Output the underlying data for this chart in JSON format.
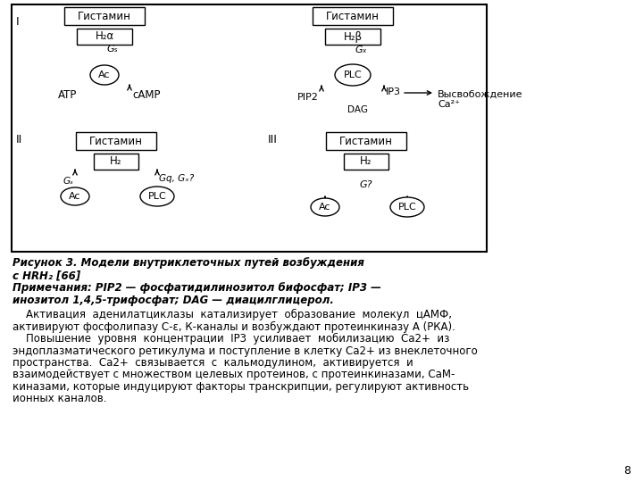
{
  "bg_color": "#ffffff",
  "fig_width": 7.2,
  "fig_height": 5.4,
  "dpi": 100,
  "caption_line1": "Рисунок 3. Модели внутриклеточных путей возбуждения",
  "caption_line2": "с HRH₂ [66]",
  "notes_line1": "Примечания: PIP2 — фосфатидилинозитол бифосфат; IP3 —",
  "notes_line2": "инозитол 1,4,5-трифосфат; DAG — диацилглицерол.",
  "body_lines": [
    "    Активация  аденилатциклазы  катализирует  образование  молекул  цАМФ,",
    "активируют фосфолипазу С-ε, К-каналы и возбуждают протеинкиназу А (РКА).",
    "    Повышение  уровня  концентрации  IP3  усиливает  мобилизацию  Ca2+  из",
    "эндоплазматического ретикулума и поступление в клетку Ca2+ из внеклеточного",
    "пространства.  Ca2+  связывается  с  кальмодулином,  активируется  и",
    "взаимодействует с множеством целевых протеинов, с протеинкиназами, СаМ-",
    "киназами, которые индуцируют факторы транскрипции, регулируют активность",
    "ионных каналов."
  ],
  "page_number": "8"
}
